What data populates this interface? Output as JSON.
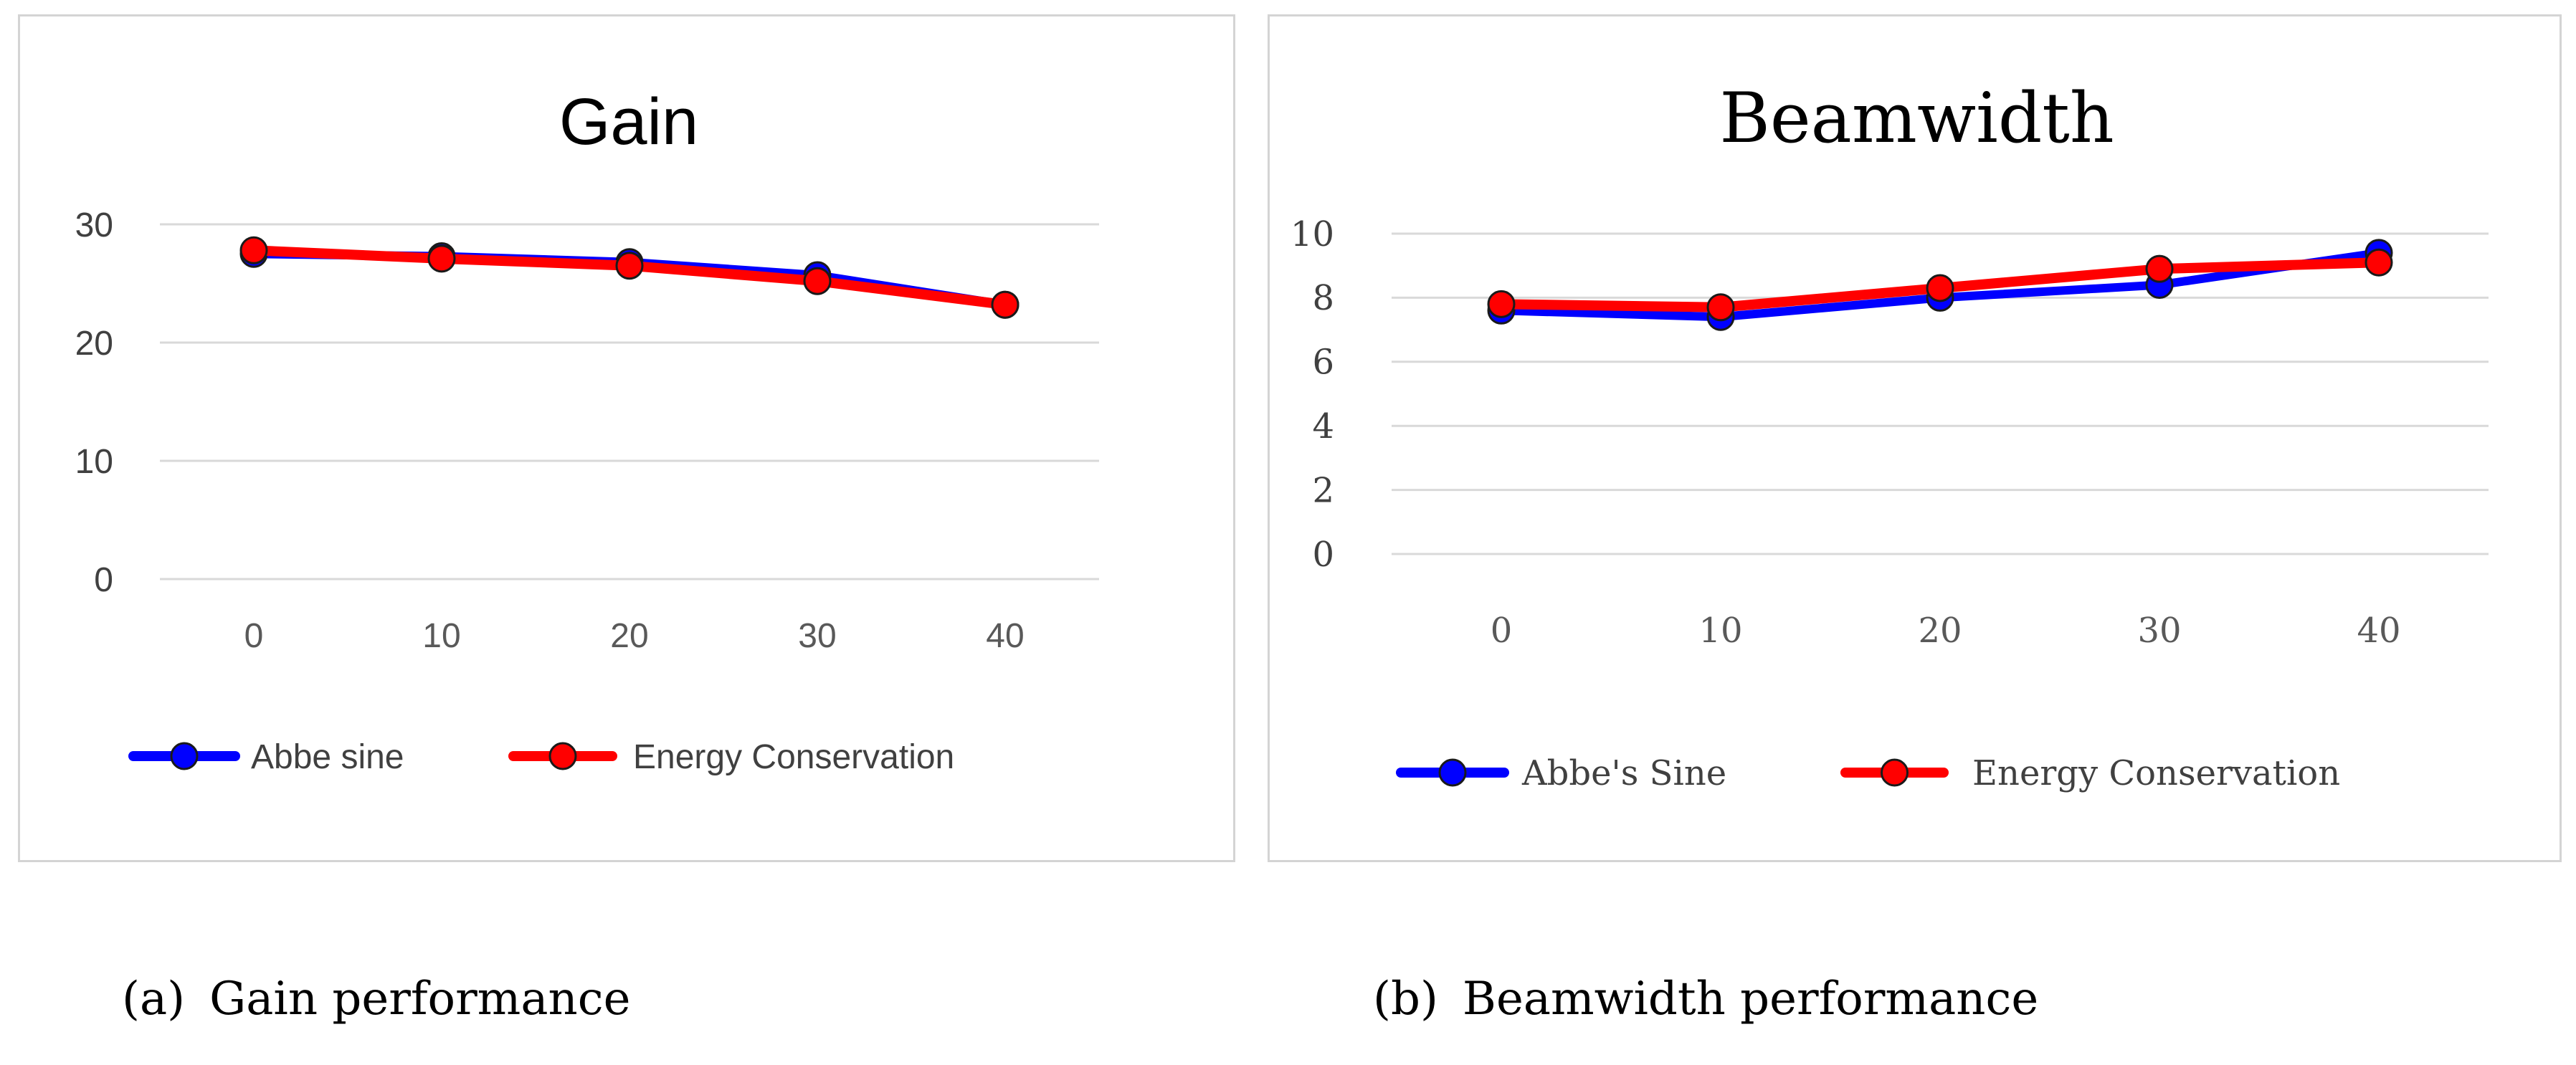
{
  "chart_data": [
    {
      "type": "line",
      "title": "Gain",
      "xlabel": "",
      "ylabel": "",
      "categories": [
        "0",
        "10",
        "20",
        "30",
        "40"
      ],
      "yticks": [
        0,
        10,
        20,
        30
      ],
      "ylim": [
        0,
        30
      ],
      "grid": true,
      "legend": "bottom",
      "series": [
        {
          "name": "Abbe sine",
          "color": "#0000ff",
          "values": [
            27.5,
            27.3,
            26.8,
            25.7,
            23.2
          ]
        },
        {
          "name": "Energy Conservation",
          "color": "#ff0000",
          "values": [
            27.8,
            27.1,
            26.5,
            25.2,
            23.2
          ]
        }
      ]
    },
    {
      "type": "line",
      "title": "Beamwidth",
      "xlabel": "",
      "ylabel": "",
      "categories": [
        "0",
        "10",
        "20",
        "30",
        "40"
      ],
      "yticks": [
        0,
        2,
        4,
        6,
        8,
        10
      ],
      "ylim": [
        0,
        10
      ],
      "grid": true,
      "legend": "bottom",
      "series": [
        {
          "name": "Abbe's Sine",
          "color": "#0000ff",
          "values": [
            7.6,
            7.4,
            8.0,
            8.4,
            9.4
          ]
        },
        {
          "name": "Energy Conservation",
          "color": "#ff0000",
          "values": [
            7.8,
            7.7,
            8.3,
            8.9,
            9.1
          ]
        }
      ]
    }
  ],
  "captions": {
    "a": {
      "tag": "(a)",
      "text": "Gain performance"
    },
    "b": {
      "tag": "(b)",
      "text": "Beamwidth performance"
    }
  }
}
